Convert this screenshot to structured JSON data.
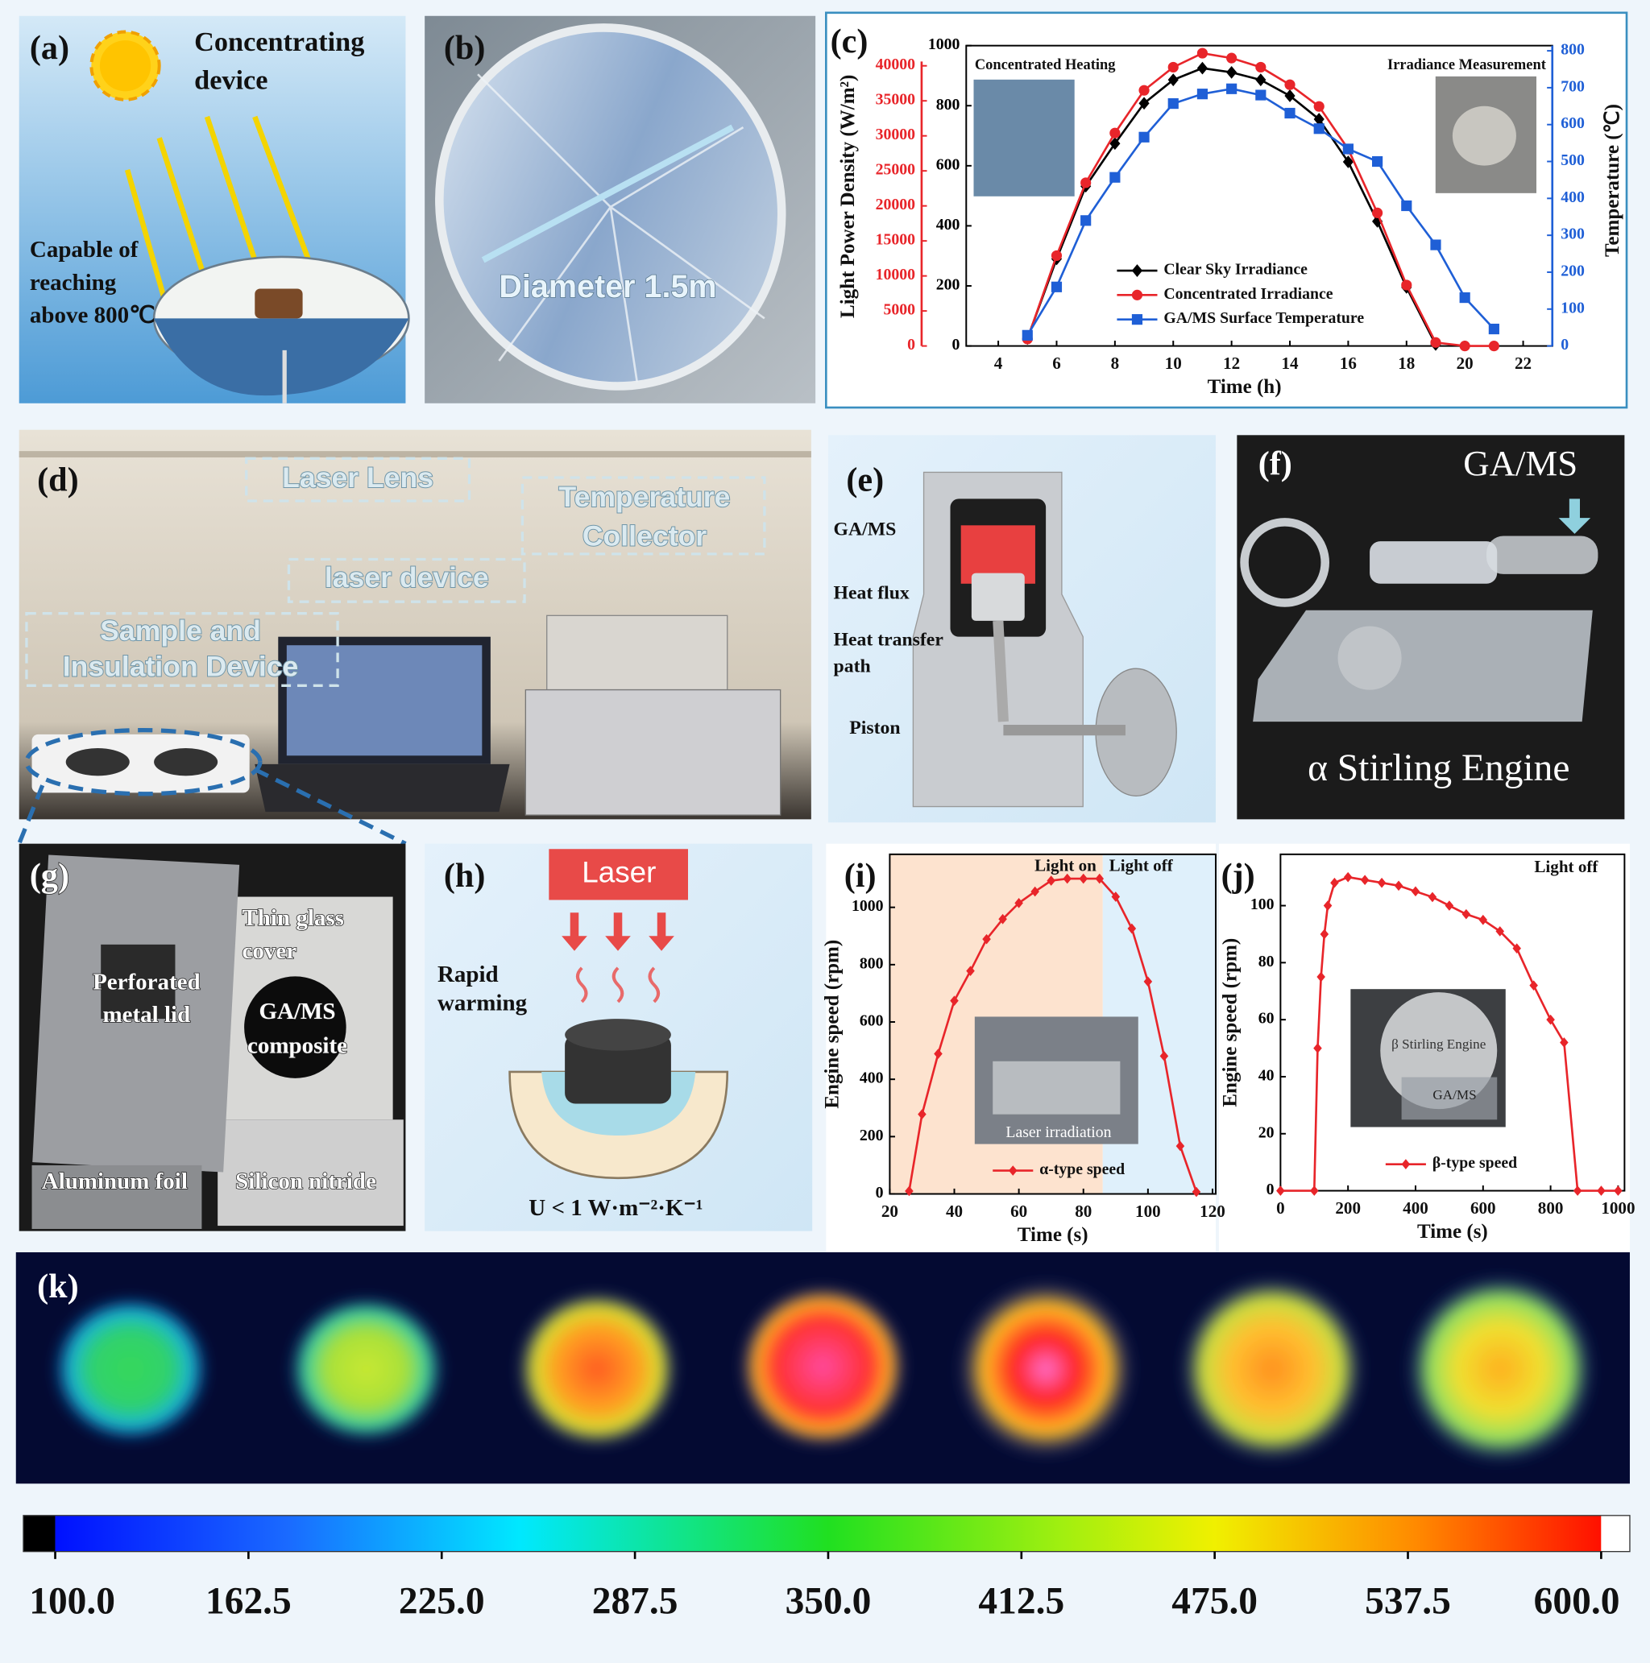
{
  "panels": {
    "a": {
      "label": "(a)",
      "heading": [
        "Concentrating",
        "device"
      ],
      "note": [
        "Capable of",
        "reaching",
        "above 800℃"
      ]
    },
    "b": {
      "label": "(b)",
      "note": "Diameter 1.5m"
    },
    "d": {
      "label": "(d)",
      "laser_lens": "Laser Lens",
      "collector": [
        "Temperature",
        "Collector"
      ],
      "laser_device": "laser device",
      "sample": [
        "Sample and",
        "Insulation Device"
      ]
    },
    "e": {
      "label": "(e)",
      "gams": "GA/MS",
      "heat_flux": "Heat flux",
      "transfer": [
        "Heat transfer",
        "path"
      ],
      "piston": "Piston"
    },
    "f": {
      "label": "(f)",
      "gams": "GA/MS",
      "engine": "α Stirling Engine"
    },
    "g": {
      "label": "(g)",
      "glass": [
        "Thin glass",
        "cover"
      ],
      "lid": [
        "Perforated",
        "metal lid"
      ],
      "composite": [
        "GA/MS",
        "composite"
      ],
      "foil": "Aluminum foil",
      "nitride": "Silicon nitride"
    },
    "h": {
      "label": "(h)",
      "laser": "Laser",
      "warming": [
        "Rapid",
        "warming"
      ],
      "u": "U < 1 W·m⁻²·K⁻¹"
    },
    "k": {
      "label": "(k)",
      "colorbar": {
        "lim": [
          100,
          600
        ],
        "ticks": [
          {
            "value": 100,
            "label": "100.0"
          },
          162.5,
          {
            "value": 225,
            "label": "225.0"
          },
          287.5,
          {
            "value": 350,
            "label": "350.0"
          },
          412.5,
          {
            "value": 475,
            "label": "475.0"
          },
          537.5,
          {
            "value": 600,
            "label": "600.0"
          }
        ]
      }
    }
  },
  "chart_data": [
    {
      "type": "line",
      "label": "(c)",
      "x_label": "Time (h)",
      "y_label": "Light Power Density (W/m²)",
      "y2_label": "Temperature (℃)",
      "insets": [
        "Concentrated Heating",
        "Irradiance Measurement"
      ],
      "x": [
        5,
        6,
        7,
        8,
        9,
        10,
        11,
        12,
        13,
        14,
        15,
        16,
        17,
        18,
        19,
        20,
        21
      ],
      "xlim": [
        2.9,
        23
      ],
      "xticks": [
        4,
        6,
        8,
        10,
        12,
        14,
        16,
        18,
        20,
        22
      ],
      "ylim": [
        0,
        1000
      ],
      "yticks": [
        0,
        200,
        400,
        600,
        800,
        1000
      ],
      "y3lim": [
        0,
        42880
      ],
      "y3ticks": [
        0,
        5000,
        10000,
        15000,
        20000,
        25000,
        30000,
        35000,
        40000
      ],
      "y2lim": [
        0,
        814
      ],
      "y2ticks": [
        0,
        100,
        200,
        300,
        400,
        500,
        600,
        700,
        800
      ],
      "series": [
        {
          "name": "Clear Sky Irradiance",
          "color": "#000000",
          "marker": "diamond",
          "values": [
            25,
            290,
            532,
            674,
            808,
            886,
            925,
            911,
            886,
            833,
            755,
            613,
            415,
            195,
            5,
            null,
            null
          ]
        },
        {
          "name": "Concentrated Irradiance",
          "color": "#e8252a",
          "marker": "circle",
          "axis": "y3",
          "values": [
            1000,
            12900,
            23300,
            30400,
            36500,
            39800,
            41800,
            41100,
            39800,
            37300,
            34200,
            28100,
            19000,
            8700,
            500,
            0,
            0
          ]
        },
        {
          "name": "GA/MS Surface Temperature",
          "color": "#1f5fd6",
          "marker": "square",
          "axis": "y2",
          "values": [
            29,
            160,
            340,
            457,
            566,
            657,
            683,
            697,
            680,
            631,
            589,
            534,
            500,
            380,
            274,
            131,
            46
          ]
        }
      ]
    },
    {
      "type": "line",
      "label": "(i)",
      "x_label": "Time (s)",
      "y_label": "Engine speed (rpm)",
      "inset": "Laser irradiation",
      "regions": [
        {
          "label": "Light on",
          "x": [
            20,
            86
          ],
          "color": "#fde3cf"
        },
        {
          "label": "Light off",
          "x": [
            86,
            121
          ],
          "color": "#dff0fb"
        }
      ],
      "x": [
        26,
        30,
        35,
        40,
        45,
        50,
        55,
        60,
        65,
        70,
        75,
        80,
        85,
        90,
        95,
        100,
        105,
        110,
        115
      ],
      "xlim": [
        20,
        121
      ],
      "xticks": [
        20,
        40,
        60,
        80,
        100,
        120
      ],
      "ylim": [
        0,
        1185
      ],
      "yticks": [
        0,
        200,
        400,
        600,
        800,
        1000
      ],
      "series": [
        {
          "name": "α-type speed",
          "color": "#e8252a",
          "marker": "diamond",
          "values": [
            10,
            278,
            489,
            674,
            778,
            889,
            959,
            1015,
            1055,
            1093,
            1100,
            1100,
            1100,
            1037,
            926,
            741,
            481,
            167,
            7
          ]
        }
      ]
    },
    {
      "type": "line",
      "label": "(j)",
      "x_label": "Time (s)",
      "y_label": "Engine speed (rpm)",
      "annotation": "Light off",
      "inset": [
        "β Stirling Engine",
        "GA/MS"
      ],
      "x": [
        0,
        100,
        110,
        120,
        130,
        140,
        160,
        200,
        250,
        300,
        350,
        400,
        450,
        500,
        550,
        600,
        650,
        700,
        750,
        800,
        840,
        880,
        950,
        1000
      ],
      "xlim": [
        0,
        1019
      ],
      "xticks": [
        0,
        200,
        400,
        600,
        800,
        1000
      ],
      "ylim": [
        0,
        118
      ],
      "yticks": [
        0,
        20,
        40,
        60,
        80,
        100
      ],
      "series": [
        {
          "name": "β-type speed",
          "color": "#e8252a",
          "marker": "diamond",
          "values": [
            0,
            0,
            50,
            75,
            90,
            100,
            108,
            110,
            109,
            108,
            107,
            105,
            103,
            100,
            97,
            95,
            91,
            85,
            72,
            60,
            52,
            0,
            0,
            0
          ]
        }
      ]
    }
  ]
}
